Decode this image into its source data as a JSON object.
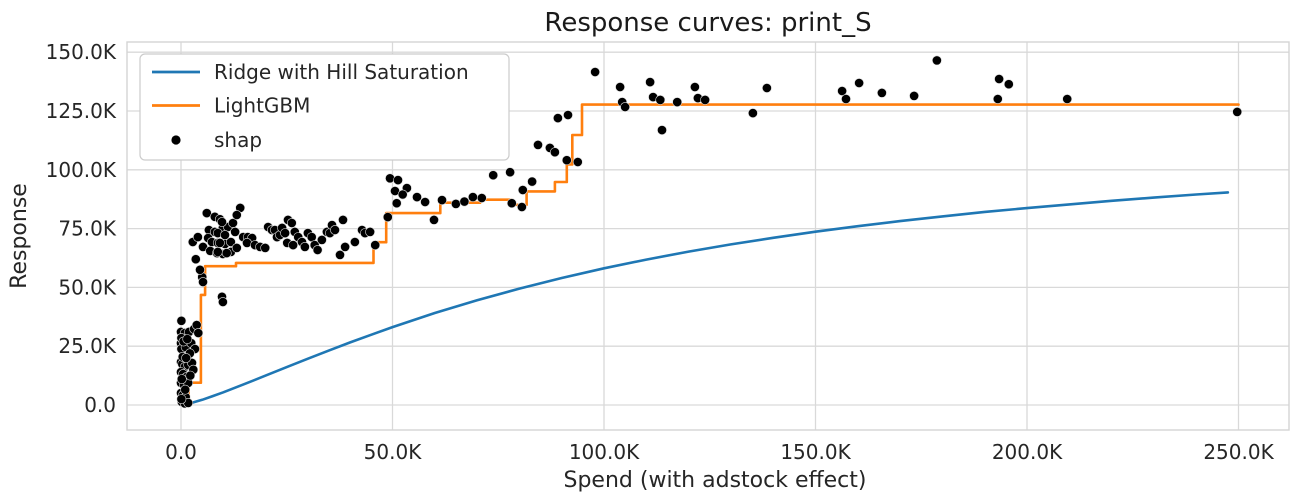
{
  "chart_data": {
    "type": "line+step+scatter",
    "title": "Response curves: print_S",
    "xlabel": "Spend (with adstock effect)",
    "ylabel": "Response",
    "grid": true,
    "xlim": [
      -12800,
      262000
    ],
    "ylim": [
      -10600,
      154300
    ],
    "x_ticks": {
      "values": [
        0,
        50000,
        100000,
        150000,
        200000,
        250000
      ],
      "labels": [
        "0.0",
        "50.0K",
        "100.0K",
        "150.0K",
        "200.0K",
        "250.0K"
      ]
    },
    "y_ticks": {
      "values": [
        0,
        25000,
        50000,
        75000,
        100000,
        125000,
        150000
      ],
      "labels": [
        "0.0",
        "25.0K",
        "50.0K",
        "75.0K",
        "100.0K",
        "125.0K",
        "150.0K"
      ]
    },
    "legend": {
      "position": "upper left",
      "entries": [
        {
          "label": "Ridge with Hill Saturation",
          "marker": "line",
          "color": "#1f77b4"
        },
        {
          "label": "LightGBM",
          "marker": "line",
          "color": "#ff7f0e"
        },
        {
          "label": "shap",
          "marker": "dot",
          "color": "#000000"
        }
      ]
    },
    "series": [
      {
        "name": "Ridge with Hill Saturation",
        "type": "line",
        "color": "#1f77b4",
        "x": [
          0,
          2500,
          5000,
          7500,
          10000,
          15000,
          20000,
          25000,
          30000,
          35000,
          40000,
          45000,
          50000,
          60000,
          70000,
          80000,
          90000,
          100000,
          110000,
          120000,
          130000,
          140000,
          150000,
          160000,
          170000,
          180000,
          190000,
          200000,
          210000,
          220000,
          230000,
          240000,
          247500
        ],
        "y": [
          0,
          900,
          2200,
          3800,
          5400,
          8900,
          12500,
          16100,
          19700,
          23200,
          26600,
          29900,
          33100,
          39100,
          44500,
          49500,
          54000,
          58100,
          61800,
          65200,
          68300,
          71100,
          73700,
          76000,
          78200,
          80200,
          82100,
          83700,
          85300,
          86800,
          88200,
          89500,
          90400
        ]
      },
      {
        "name": "LightGBM",
        "type": "step",
        "color": "#ff7f0e",
        "steps": [
          [
            0,
            0
          ],
          [
            1800,
            9500
          ],
          [
            4700,
            46800
          ],
          [
            5700,
            59000
          ],
          [
            13000,
            60400
          ],
          [
            45500,
            69200
          ],
          [
            48500,
            81600
          ],
          [
            61300,
            86000
          ],
          [
            70700,
            87300
          ],
          [
            78300,
            85100
          ],
          [
            81700,
            90800
          ],
          [
            88400,
            94800
          ],
          [
            91200,
            102300
          ],
          [
            92500,
            114800
          ],
          [
            94800,
            127700
          ]
        ],
        "end_x": 250000
      },
      {
        "name": "shap",
        "type": "scatter",
        "color": "#000000",
        "points": [
          [
            100,
            35800
          ],
          [
            0,
            31100
          ],
          [
            900,
            30600
          ],
          [
            1900,
            31100
          ],
          [
            3100,
            32300
          ],
          [
            3700,
            34000
          ],
          [
            4100,
            30600
          ],
          [
            0,
            26300
          ],
          [
            100,
            23800
          ],
          [
            1100,
            24600
          ],
          [
            2400,
            26300
          ],
          [
            3300,
            23800
          ],
          [
            0,
            18300
          ],
          [
            300,
            17400
          ],
          [
            900,
            16200
          ],
          [
            1700,
            17000
          ],
          [
            2600,
            17900
          ],
          [
            0,
            14000
          ],
          [
            500,
            13200
          ],
          [
            1300,
            11900
          ],
          [
            0,
            9400
          ],
          [
            700,
            8500
          ],
          [
            1700,
            9400
          ],
          [
            0,
            5100
          ],
          [
            500,
            4300
          ],
          [
            1100,
            3400
          ],
          [
            200,
            1300
          ],
          [
            900,
            700
          ],
          [
            1700,
            900
          ],
          [
            100,
            28500
          ],
          [
            600,
            27000
          ],
          [
            1500,
            28000
          ],
          [
            2100,
            22000
          ],
          [
            400,
            20500
          ],
          [
            1200,
            20000
          ],
          [
            2900,
            15000
          ],
          [
            200,
            11000
          ],
          [
            1000,
            6500
          ],
          [
            100,
            2500
          ],
          [
            2200,
            12500
          ],
          [
            2800,
            69300
          ],
          [
            4000,
            71400
          ],
          [
            5200,
            67200
          ],
          [
            6100,
            81600
          ],
          [
            8000,
            80000
          ],
          [
            9200,
            79000
          ],
          [
            6600,
            74400
          ],
          [
            8000,
            73600
          ],
          [
            9900,
            75300
          ],
          [
            11100,
            75700
          ],
          [
            6400,
            71000
          ],
          [
            7300,
            69300
          ],
          [
            8700,
            68900
          ],
          [
            10400,
            68500
          ],
          [
            11800,
            69300
          ],
          [
            6900,
            65500
          ],
          [
            8500,
            64600
          ],
          [
            9900,
            64200
          ],
          [
            11800,
            65100
          ],
          [
            5000,
            54400
          ],
          [
            5200,
            52300
          ],
          [
            9700,
            46000
          ],
          [
            9900,
            43800
          ],
          [
            3500,
            62000
          ],
          [
            4500,
            57500
          ],
          [
            9700,
            77800
          ],
          [
            8700,
            73100
          ],
          [
            10400,
            72300
          ],
          [
            9200,
            68900
          ],
          [
            8700,
            65100
          ],
          [
            10800,
            64600
          ],
          [
            14000,
            83800
          ],
          [
            12300,
            77400
          ],
          [
            12800,
            73600
          ],
          [
            14700,
            71400
          ],
          [
            15800,
            71400
          ],
          [
            16800,
            71000
          ],
          [
            15600,
            68900
          ],
          [
            13200,
            66800
          ],
          [
            17500,
            68000
          ],
          [
            18700,
            67200
          ],
          [
            19900,
            66800
          ],
          [
            20600,
            75700
          ],
          [
            21500,
            74400
          ],
          [
            22200,
            74400
          ],
          [
            22700,
            71400
          ],
          [
            23400,
            72300
          ],
          [
            23900,
            75300
          ],
          [
            24600,
            73100
          ],
          [
            25300,
            78700
          ],
          [
            26200,
            77400
          ],
          [
            26900,
            73600
          ],
          [
            25100,
            68900
          ],
          [
            26500,
            68000
          ],
          [
            27700,
            71400
          ],
          [
            28600,
            69300
          ],
          [
            29300,
            67200
          ],
          [
            30000,
            73100
          ],
          [
            30900,
            71400
          ],
          [
            31600,
            68000
          ],
          [
            32300,
            65900
          ],
          [
            33300,
            70200
          ],
          [
            34500,
            73600
          ],
          [
            35200,
            73100
          ],
          [
            35700,
            76500
          ],
          [
            36400,
            74400
          ],
          [
            37600,
            63800
          ],
          [
            38300,
            78700
          ],
          [
            38800,
            67200
          ],
          [
            41100,
            69300
          ],
          [
            42800,
            74400
          ],
          [
            43500,
            73100
          ],
          [
            44700,
            73600
          ],
          [
            45900,
            68000
          ],
          [
            13200,
            80800
          ],
          [
            48900,
            79900
          ],
          [
            49400,
            96400
          ],
          [
            51300,
            95600
          ],
          [
            51000,
            85800
          ],
          [
            53400,
            92200
          ],
          [
            55800,
            88400
          ],
          [
            57700,
            86300
          ],
          [
            50600,
            91000
          ],
          [
            52400,
            89500
          ],
          [
            59800,
            78700
          ],
          [
            61700,
            87100
          ],
          [
            65000,
            85500
          ],
          [
            67000,
            86500
          ],
          [
            69000,
            88400
          ],
          [
            71100,
            88000
          ],
          [
            73800,
            97700
          ],
          [
            77800,
            99000
          ],
          [
            78200,
            85800
          ],
          [
            80600,
            84200
          ],
          [
            80800,
            91400
          ],
          [
            83000,
            95000
          ],
          [
            84400,
            110600
          ],
          [
            87200,
            109300
          ],
          [
            88400,
            107500
          ],
          [
            89100,
            122000
          ],
          [
            91500,
            123300
          ],
          [
            91200,
            104100
          ],
          [
            93800,
            103300
          ],
          [
            97900,
            141600
          ],
          [
            103800,
            135200
          ],
          [
            104300,
            128800
          ],
          [
            105000,
            126700
          ],
          [
            110900,
            137300
          ],
          [
            111600,
            130900
          ],
          [
            113300,
            129700
          ],
          [
            117300,
            128800
          ],
          [
            113700,
            116900
          ],
          [
            121500,
            135200
          ],
          [
            122200,
            130500
          ],
          [
            123900,
            129700
          ],
          [
            135200,
            124100
          ],
          [
            138500,
            134800
          ],
          [
            156300,
            133500
          ],
          [
            157200,
            130100
          ],
          [
            160300,
            136900
          ],
          [
            165700,
            132700
          ],
          [
            173300,
            131400
          ],
          [
            178700,
            146500
          ],
          [
            193400,
            138600
          ],
          [
            195700,
            136400
          ],
          [
            193100,
            130100
          ],
          [
            209500,
            130100
          ],
          [
            249700,
            124600
          ]
        ]
      }
    ]
  }
}
